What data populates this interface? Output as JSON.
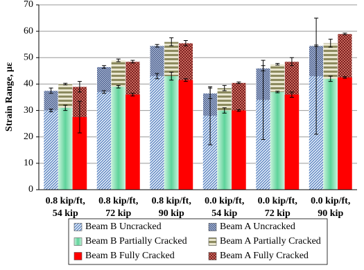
{
  "chart_data": {
    "type": "bar",
    "y_label": "Strain Range, με",
    "categories": [
      "0.8 kip/ft,\n54 kip",
      "0.8 kip/ft,\n72 kip",
      "0.8 kip/ft,\n90 kip",
      "0.0 kip/ft,\n54 kip",
      "0.0 kip/ft,\n72 kip",
      "0.0 kip/ft,\n90 kip"
    ],
    "ylim": [
      0,
      70
    ],
    "yticks": [
      0,
      10,
      20,
      30,
      40,
      50,
      60,
      70
    ],
    "grid": true,
    "series": [
      {
        "name": "Beam B Uncracked",
        "color": "#3d6db5",
        "values": [
          30,
          37,
          43,
          28,
          34,
          43
        ],
        "errors": [
          0.5,
          0.5,
          1,
          11,
          15,
          22
        ]
      },
      {
        "name": "Beam A Uncracked",
        "color": "#2b3f73",
        "values": [
          37.5,
          46.5,
          54.5,
          36.5,
          46,
          54.5
        ],
        "errors": [
          1,
          0.5,
          0.5,
          2,
          1,
          0.3
        ]
      },
      {
        "name": "Beam B Partially Cracked",
        "color": "#5ed39a",
        "values": [
          31,
          39,
          43,
          30,
          37,
          42
        ],
        "errors": [
          1,
          0.5,
          1.5,
          1,
          0.3,
          1
        ]
      },
      {
        "name": "Beam A Partially Cracked",
        "color": "#8c8a5e",
        "values": [
          40,
          49,
          56,
          38.5,
          47.5,
          55.5
        ],
        "errors": [
          0.3,
          0.5,
          1.5,
          1,
          0.3,
          1.5
        ]
      },
      {
        "name": "Beam B Fully Cracked",
        "color": "#ff0000",
        "values": [
          27.5,
          36,
          41.5,
          30,
          36,
          42.5
        ],
        "errors": [
          6,
          0.5,
          0.5,
          0.3,
          1,
          0.3
        ]
      },
      {
        "name": "Beam A Fully Cracked",
        "color": "#7a1f1f",
        "values": [
          39,
          48.5,
          55.5,
          40.5,
          48.5,
          59
        ],
        "errors": [
          2,
          0.5,
          1,
          0.3,
          1.5,
          0.3
        ]
      }
    ]
  }
}
